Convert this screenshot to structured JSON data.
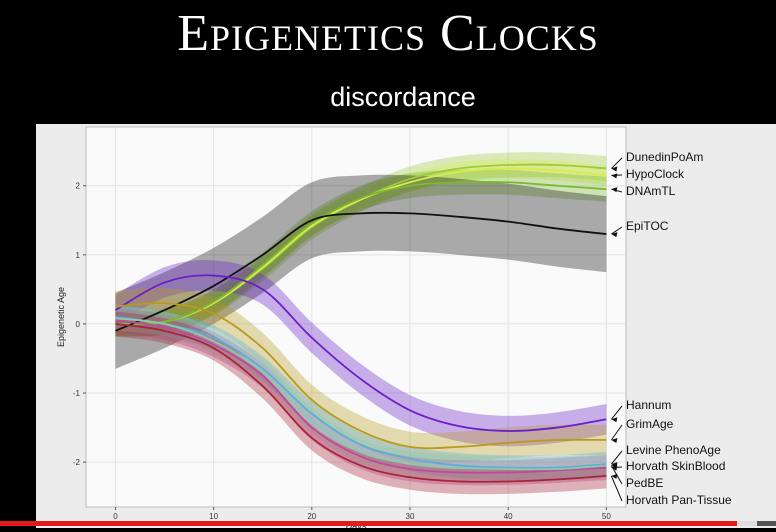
{
  "slide": {
    "title": "Epigenetics Clocks",
    "subtitle": "discordance"
  },
  "video": {
    "progress_fraction": 0.95
  },
  "chart_data": {
    "type": "line",
    "xlabel": "Days",
    "ylabel": "Epigenetic Age",
    "xlim": [
      -3,
      52
    ],
    "ylim": [
      -2.65,
      2.85
    ],
    "xticks": [
      0,
      10,
      20,
      30,
      40,
      50
    ],
    "yticks": [
      -2,
      -1,
      0,
      1,
      2
    ],
    "grid": true,
    "legend": "direct labels on right",
    "series": [
      {
        "name": "DunedinPoAm",
        "color": "#9ccc3c",
        "band": 0.18,
        "x": [
          0,
          5,
          10,
          15,
          20,
          25,
          30,
          35,
          40,
          45,
          50
        ],
        "y": [
          0.0,
          0.03,
          0.3,
          0.8,
          1.4,
          1.8,
          2.1,
          2.25,
          2.3,
          2.3,
          2.25
        ]
      },
      {
        "name": "HypoClock",
        "color": "#d8ec4a",
        "band": 0.14,
        "x": [
          0,
          5,
          10,
          15,
          20,
          25,
          30,
          35,
          40,
          45,
          50
        ],
        "y": [
          0.0,
          0.03,
          0.3,
          0.82,
          1.42,
          1.8,
          2.05,
          2.2,
          2.25,
          2.22,
          2.15
        ]
      },
      {
        "name": "DNAmTL",
        "color": "#7cb830",
        "band": 0.18,
        "x": [
          0,
          5,
          10,
          15,
          20,
          25,
          30,
          35,
          40,
          45,
          50
        ],
        "y": [
          0.0,
          0.03,
          0.32,
          0.85,
          1.45,
          1.82,
          2.0,
          2.05,
          2.05,
          2.0,
          1.95
        ]
      },
      {
        "name": "EpiTOC",
        "color": "#111111",
        "band": 0.55,
        "x": [
          0,
          5,
          10,
          15,
          20,
          25,
          30,
          35,
          40,
          45,
          50
        ],
        "y": [
          -0.1,
          0.2,
          0.55,
          1.0,
          1.5,
          1.6,
          1.6,
          1.55,
          1.48,
          1.38,
          1.3
        ]
      },
      {
        "name": "Hannum",
        "color": "#6a1fc8",
        "band": 0.22,
        "x": [
          0,
          5,
          10,
          15,
          20,
          25,
          30,
          35,
          40,
          45,
          50
        ],
        "y": [
          0.2,
          0.6,
          0.7,
          0.5,
          -0.2,
          -0.8,
          -1.25,
          -1.48,
          -1.55,
          -1.5,
          -1.38
        ]
      },
      {
        "name": "GrimAge",
        "color": "#b89a20",
        "band": 0.22,
        "x": [
          0,
          5,
          10,
          15,
          20,
          25,
          30,
          35,
          40,
          45,
          50
        ],
        "y": [
          0.25,
          0.3,
          0.15,
          -0.35,
          -1.1,
          -1.55,
          -1.78,
          -1.78,
          -1.72,
          -1.68,
          -1.68
        ]
      },
      {
        "name": "Levine PhenoAge",
        "color": "#5aaed8",
        "band": 0.18,
        "x": [
          0,
          5,
          10,
          15,
          20,
          25,
          30,
          35,
          40,
          45,
          50
        ],
        "y": [
          0.1,
          0.0,
          -0.2,
          -0.65,
          -1.3,
          -1.75,
          -1.95,
          -2.05,
          -2.08,
          -2.08,
          -2.03
        ]
      },
      {
        "name": "Horvath SkinBlood",
        "color": "#c04a9a",
        "band": 0.18,
        "x": [
          0,
          5,
          10,
          15,
          20,
          25,
          30,
          35,
          40,
          45,
          50
        ],
        "y": [
          0.05,
          -0.05,
          -0.3,
          -0.75,
          -1.5,
          -1.92,
          -2.1,
          -2.15,
          -2.15,
          -2.12,
          -2.08
        ]
      },
      {
        "name": "PedBE",
        "color": "#8fc8a8",
        "band": 0.18,
        "x": [
          0,
          5,
          10,
          15,
          20,
          25,
          30,
          35,
          40,
          45,
          50
        ],
        "y": [
          0.08,
          0.0,
          -0.25,
          -0.7,
          -1.4,
          -1.85,
          -2.02,
          -2.08,
          -2.1,
          -2.1,
          -2.05
        ]
      },
      {
        "name": "Horvath Pan-Tissue",
        "color": "#a8243c",
        "band": 0.18,
        "x": [
          0,
          5,
          10,
          15,
          20,
          25,
          30,
          35,
          40,
          45,
          50
        ],
        "y": [
          0.0,
          -0.1,
          -0.35,
          -0.9,
          -1.65,
          -2.05,
          -2.22,
          -2.28,
          -2.28,
          -2.25,
          -2.2
        ]
      }
    ]
  }
}
